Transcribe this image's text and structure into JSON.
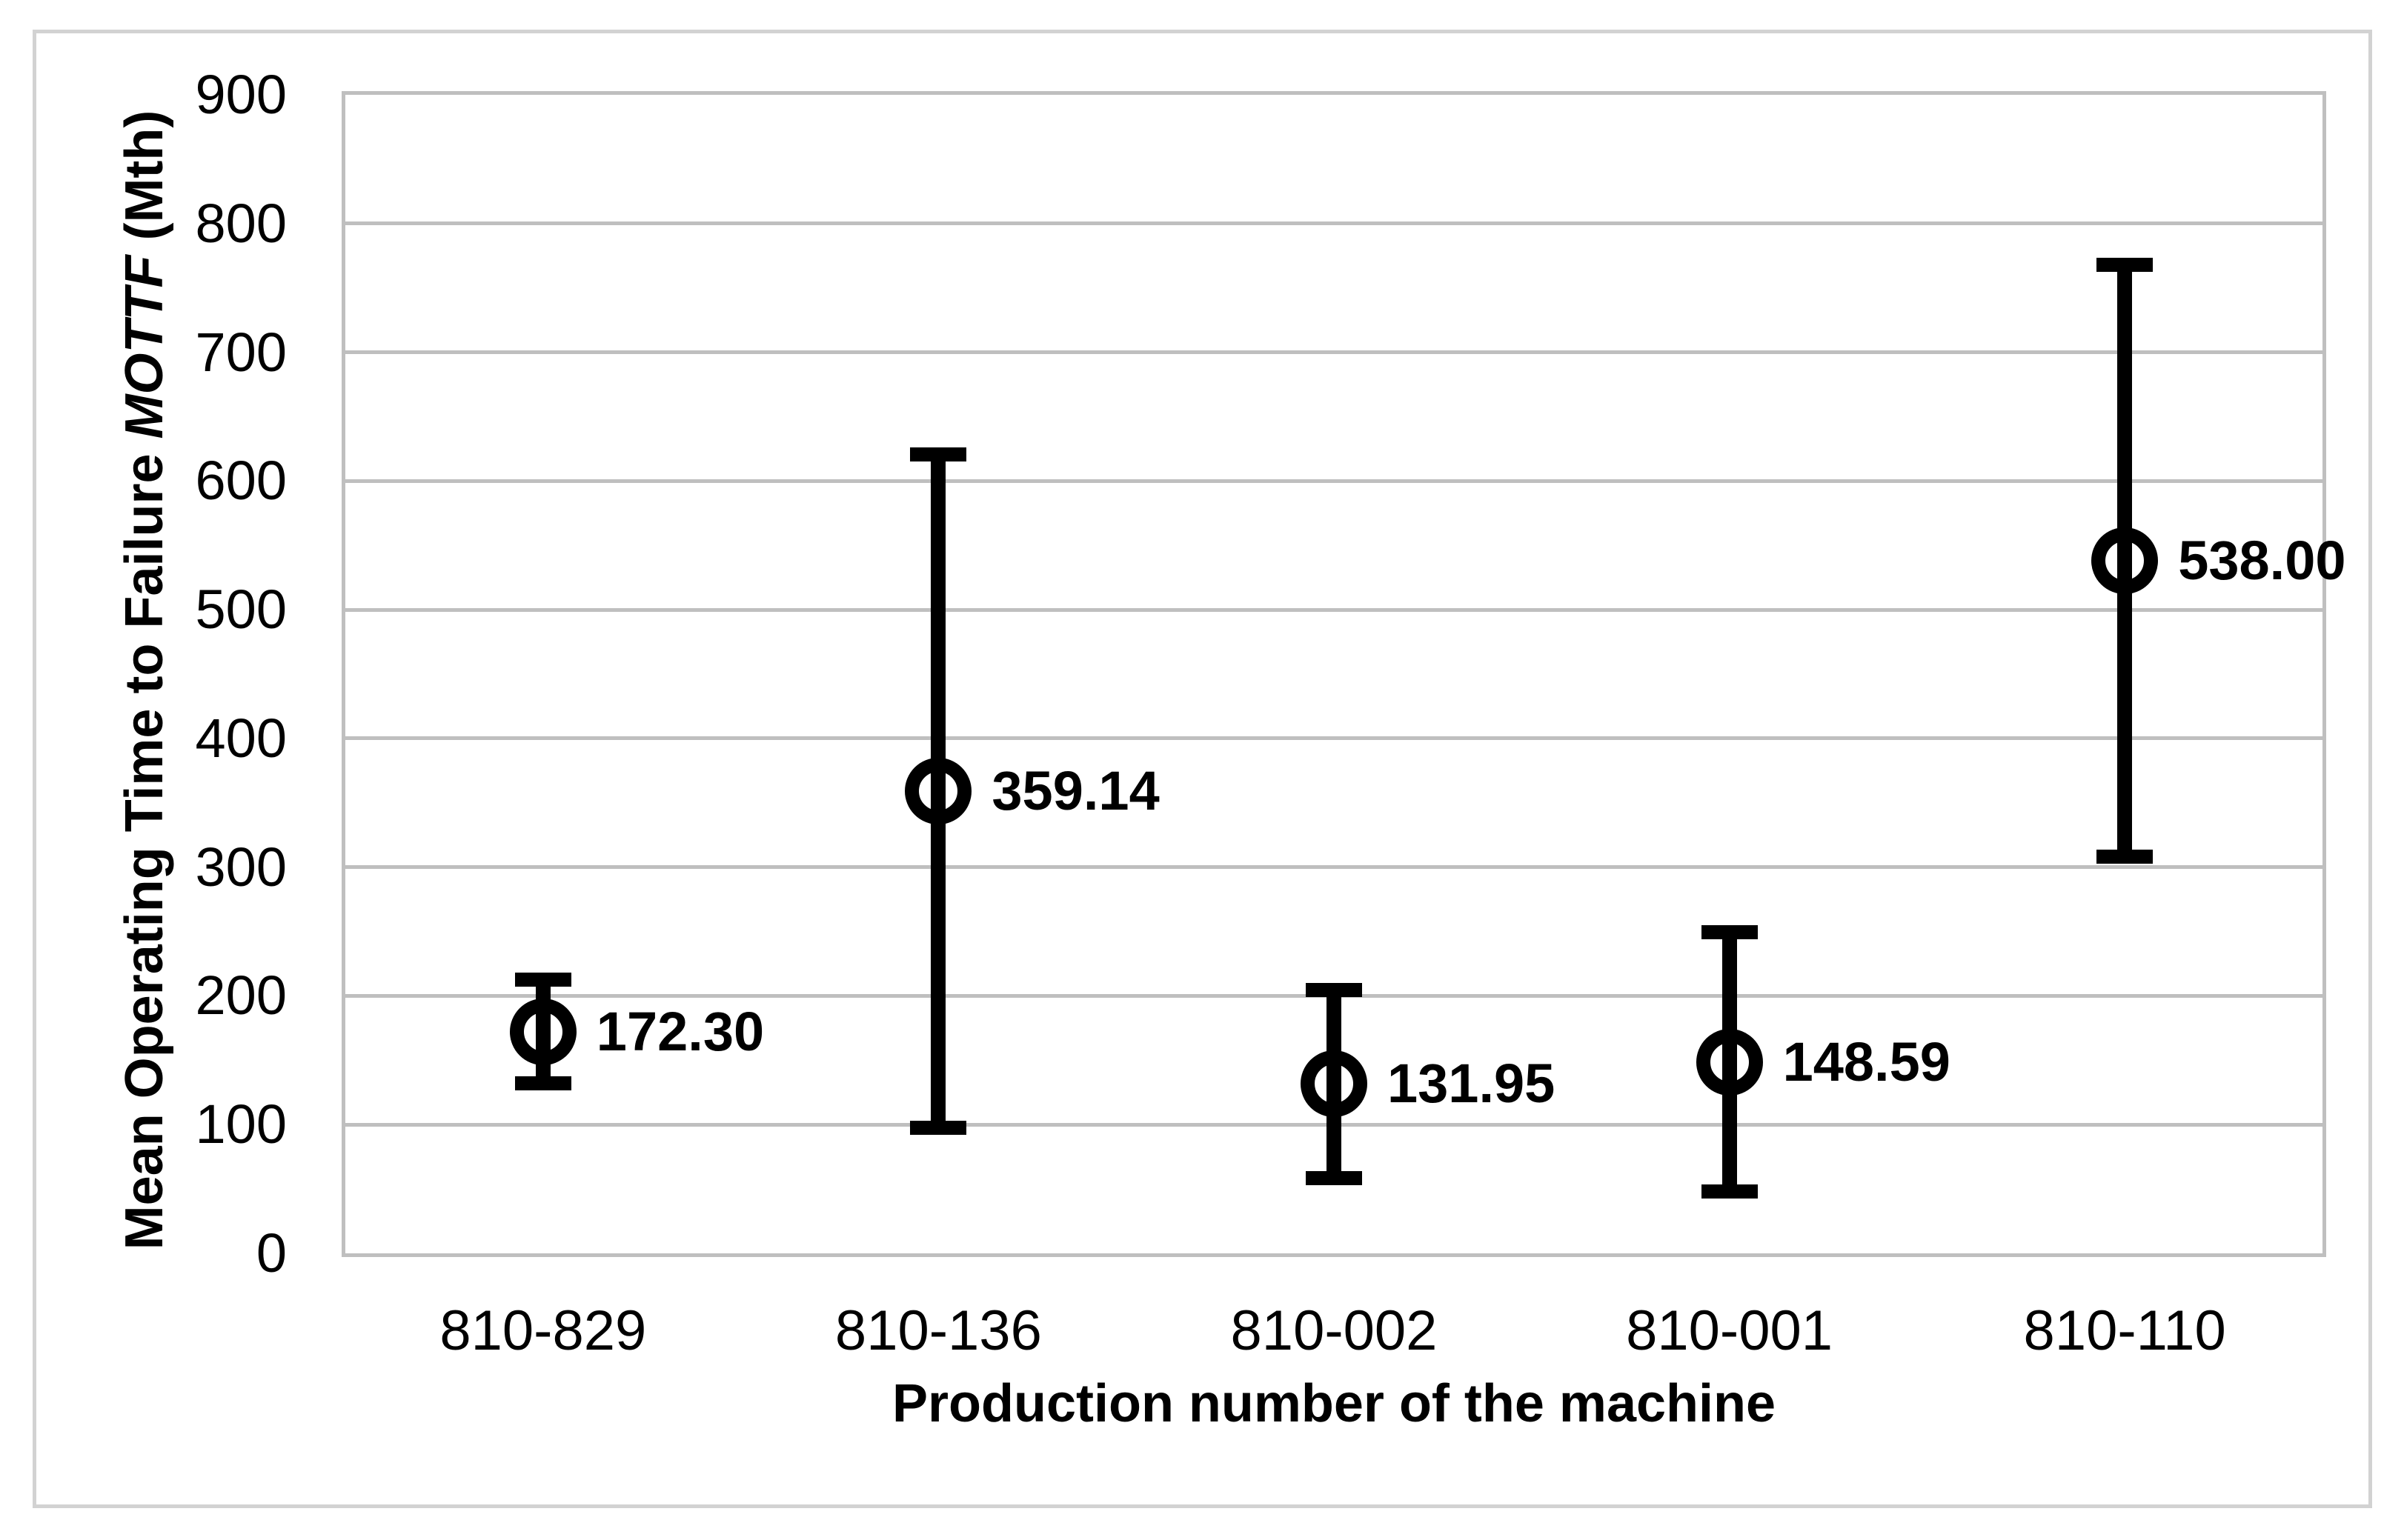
{
  "figure": {
    "colors": {
      "background": "#ffffff",
      "frame_border": "#d2d2d2",
      "plot_border": "#bfbfbf",
      "gridline": "#bfbfbf",
      "error_bar": "#000000",
      "marker": "#000000",
      "text": "#000000"
    }
  },
  "chart_data": {
    "type": "scatter",
    "subtype": "error-bar-plot",
    "title": "",
    "xlabel": "Production number of the machine",
    "ylabel": "Mean Operating Time to Failure MOTTF (Mth)",
    "ylabel_parts": {
      "prefix": "Mean Operating Time to Failure",
      "italic": "MOTTF",
      "suffix": "(Mth)"
    },
    "categories": [
      "810-829",
      "810-136",
      "810-002",
      "810-001",
      "810-110"
    ],
    "series": [
      {
        "name": "MOTTF",
        "values": [
          172.3,
          359.14,
          131.95,
          148.59,
          538.0
        ],
        "data_labels": [
          "172.30",
          "359.14",
          "131.95",
          "148.59",
          "538.00"
        ],
        "whisker_upper": [
          213,
          621,
          205,
          250,
          768
        ],
        "whisker_lower": [
          132,
          97,
          58,
          48,
          308
        ]
      }
    ],
    "ylim": [
      0,
      900
    ],
    "yticks": [
      0,
      100,
      200,
      300,
      400,
      500,
      600,
      700,
      800,
      900
    ],
    "grid": "horizontal",
    "legend": false,
    "marker_style": "open-circle",
    "error_bars": true
  }
}
